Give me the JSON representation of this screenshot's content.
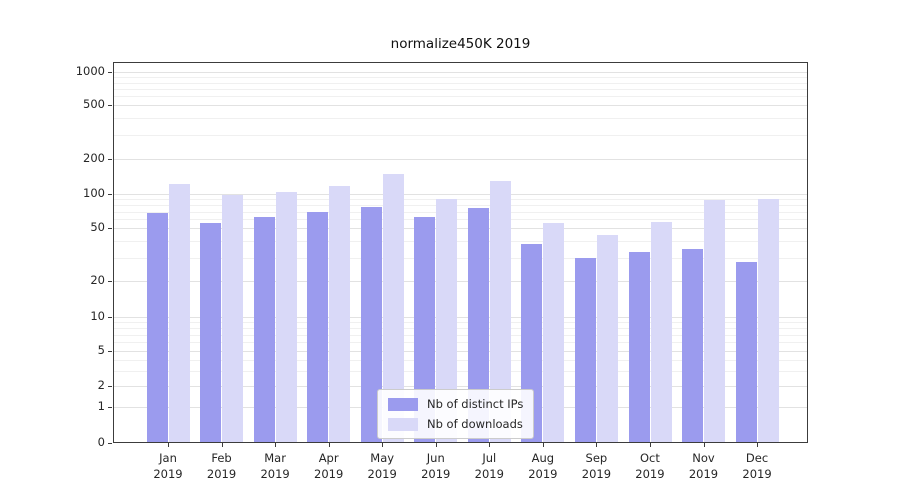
{
  "chart_data": {
    "type": "bar",
    "title": "normalize450K 2019",
    "yscale": "symlog",
    "grid": true,
    "legend_position": "lower center",
    "categories": [
      "Jan",
      "Feb",
      "Mar",
      "Apr",
      "May",
      "Jun",
      "Jul",
      "Aug",
      "Sep",
      "Oct",
      "Nov",
      "Dec"
    ],
    "category_year": "2019",
    "yticks": [
      0,
      1,
      2,
      5,
      10,
      20,
      50,
      100,
      200,
      500,
      1000
    ],
    "ylim": [
      0,
      1000
    ],
    "series": [
      {
        "name": "Nb of distinct IPs",
        "color": "#9b9bee",
        "values": [
          68,
          55,
          63,
          70,
          77,
          63,
          76,
          38,
          30,
          33,
          35,
          28
        ]
      },
      {
        "name": "Nb of downloads",
        "color": "#d9d9f8",
        "values": [
          122,
          99,
          105,
          117,
          150,
          90,
          130,
          55,
          44,
          57,
          88,
          90
        ]
      }
    ]
  }
}
